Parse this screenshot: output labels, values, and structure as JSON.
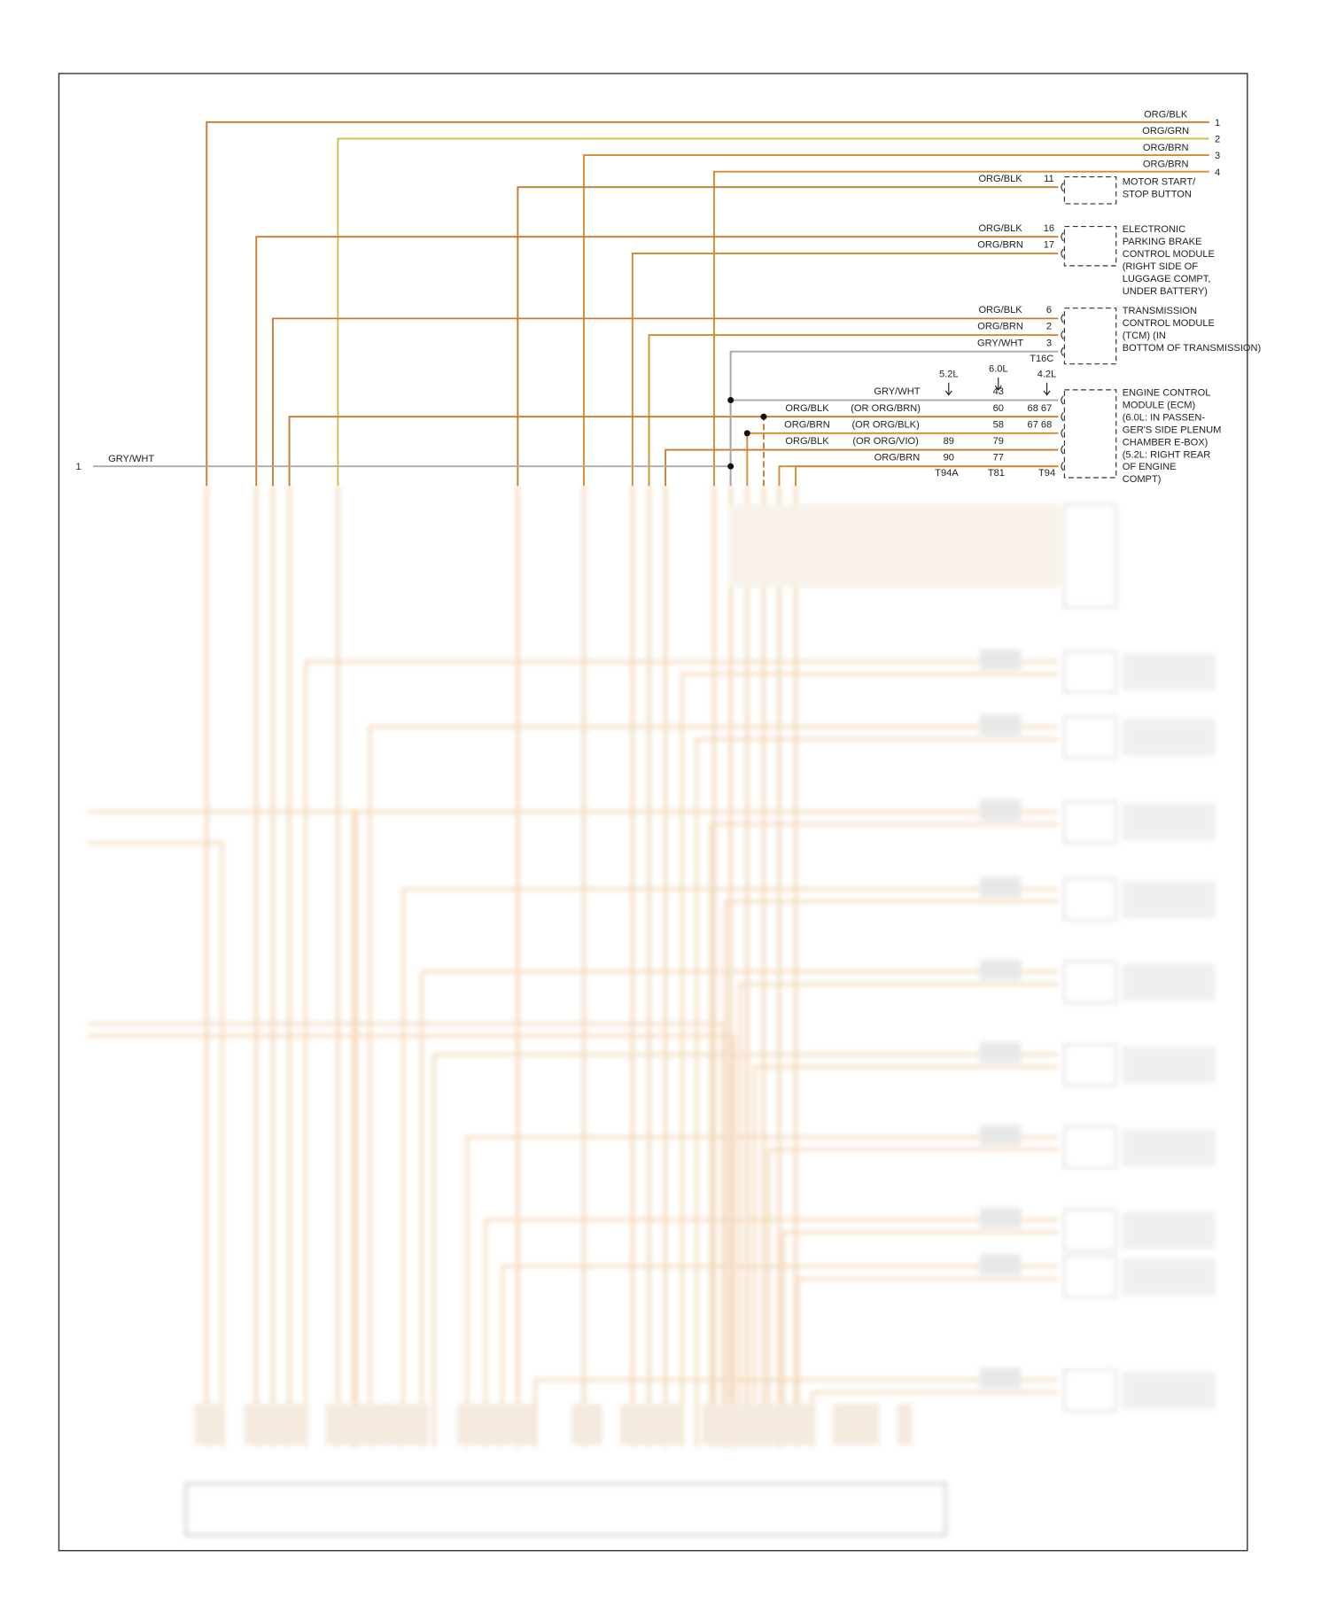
{
  "feeds": [
    {
      "wire": "ORG/BLK",
      "pin": "1",
      "color": "#c87a2c"
    },
    {
      "wire": "ORG/GRN",
      "pin": "2",
      "color": "#c9c24a"
    },
    {
      "wire": "ORG/BRN",
      "pin": "3",
      "color": "#d9892b"
    },
    {
      "wire": "ORG/BRN",
      "pin": "4",
      "color": "#d9892b"
    }
  ],
  "motor_start": {
    "wires": [
      {
        "wire": "ORG/BLK",
        "pin": "11",
        "color": "#c87a2c"
      }
    ],
    "label": [
      "MOTOR START/",
      "STOP BUTTON"
    ]
  },
  "parking_brake": {
    "wires": [
      {
        "wire": "ORG/BLK",
        "pin": "16",
        "color": "#c87a2c"
      },
      {
        "wire": "ORG/BRN",
        "pin": "17",
        "color": "#d9892b"
      }
    ],
    "label": [
      "ELECTRONIC",
      "PARKING BRAKE",
      "CONTROL MODULE",
      "(RIGHT SIDE OF",
      "LUGGAGE COMPT,",
      "UNDER BATTERY)"
    ]
  },
  "tcm": {
    "wires": [
      {
        "wire": "ORG/BLK",
        "pin": "6",
        "color": "#c87a2c"
      },
      {
        "wire": "ORG/BRN",
        "pin": "2",
        "color": "#d9892b"
      },
      {
        "wire": "GRY/WHT",
        "pin": "3",
        "color": "#aaaaaa"
      }
    ],
    "connector": "T16C",
    "label": [
      "TRANSMISSION",
      "CONTROL MODULE",
      "(TCM) (IN",
      "BOTTOM OF TRANSMISSION)"
    ]
  },
  "ecm": {
    "engines": {
      "t94a": "5.2L",
      "t81": "6.0L",
      "t94": "4.2L"
    },
    "rows": [
      {
        "wire": "GRY/WHT",
        "t81": "43",
        "color": "#aaaaaa"
      },
      {
        "wire": "ORG/BLK",
        "alt": "(OR ORG/BRN)",
        "t81": "60",
        "t94": "68 67",
        "color": "#c87a2c"
      },
      {
        "wire": "ORG/BRN",
        "alt": "(OR ORG/BLK)",
        "t81": "58",
        "t94": "67 68",
        "color": "#d9892b"
      },
      {
        "wire": "ORG/BLK",
        "alt": "(OR ORG/VIO)",
        "t94a": "89",
        "t81": "79",
        "color": "#c87a2c"
      },
      {
        "wire": "ORG/BRN",
        "t94a": "90",
        "t81": "77",
        "color": "#d9892b"
      }
    ],
    "connectors": {
      "t94a": "T94A",
      "t81": "T81",
      "t94": "T94"
    },
    "label": [
      "ENGINE CONTROL",
      "MODULE (ECM)",
      "(6.0L: IN PASSEN-",
      "GER'S SIDE PLENUM",
      "CHAMBER E-BOX)",
      "(5.2L: RIGHT REAR",
      "OF ENGINE",
      "COMPT)"
    ]
  },
  "left_feed": {
    "pin": "1",
    "wire": "GRY/WHT",
    "color": "#aaaaaa"
  }
}
